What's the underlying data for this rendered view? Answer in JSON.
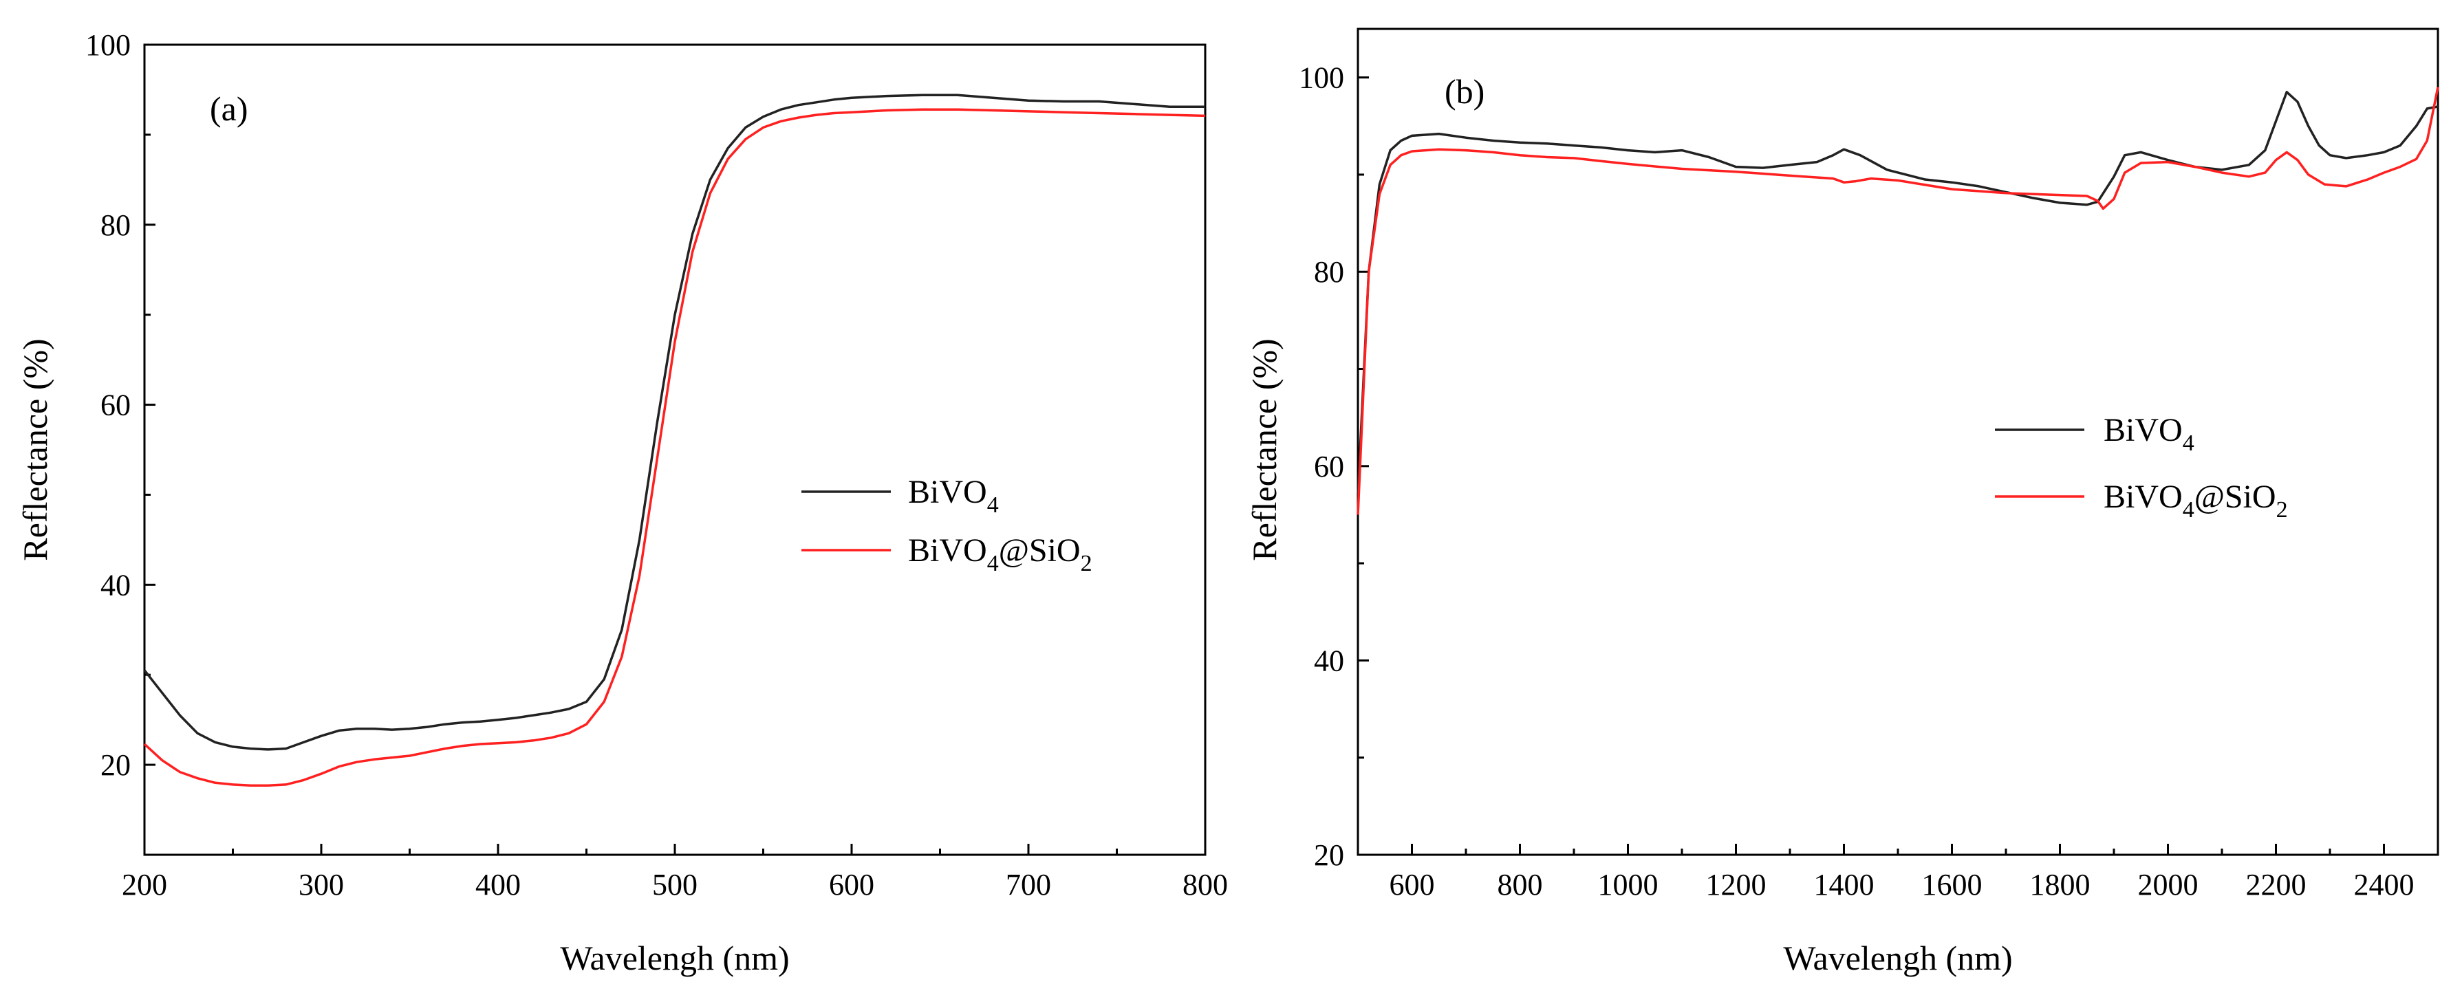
{
  "chart_data": [
    {
      "type": "line",
      "panel_label": "(a)",
      "xlabel": "Wavelengh (nm)",
      "ylabel": "Reflectance (%)",
      "xlim": [
        200,
        800
      ],
      "ylim": [
        10,
        100
      ],
      "x_ticks": [
        200,
        300,
        400,
        500,
        600,
        700,
        800
      ],
      "y_ticks": [
        20,
        40,
        60,
        80,
        100
      ],
      "legend_position": "center-right",
      "series": [
        {
          "name": "BiVO4",
          "legend_base": "BiVO",
          "legend_sub": "4",
          "color": "#222222",
          "x": [
            200,
            210,
            220,
            230,
            240,
            250,
            260,
            270,
            280,
            290,
            300,
            310,
            320,
            330,
            340,
            350,
            360,
            370,
            380,
            390,
            400,
            410,
            420,
            430,
            440,
            450,
            460,
            470,
            480,
            490,
            500,
            510,
            520,
            530,
            540,
            550,
            560,
            570,
            580,
            590,
            600,
            620,
            640,
            660,
            680,
            700,
            720,
            740,
            760,
            780,
            800
          ],
          "values": [
            30.5,
            28,
            25.5,
            23.5,
            22.5,
            22,
            21.8,
            21.7,
            21.8,
            22.5,
            23.2,
            23.8,
            24,
            24,
            23.9,
            24,
            24.2,
            24.5,
            24.7,
            24.8,
            25,
            25.2,
            25.5,
            25.8,
            26.2,
            27,
            29.5,
            35,
            45,
            58,
            70,
            79,
            85,
            88.5,
            90.8,
            92,
            92.8,
            93.3,
            93.6,
            93.9,
            94.1,
            94.3,
            94.4,
            94.4,
            94.1,
            93.8,
            93.7,
            93.7,
            93.4,
            93.1,
            93.1
          ]
        },
        {
          "name": "BiVO4@SiO2",
          "legend_base": "BiVO",
          "legend_sub": "4",
          "legend_mid": "@SiO",
          "legend_sub2": "2",
          "color": "#ff2020",
          "x": [
            200,
            210,
            220,
            230,
            240,
            250,
            260,
            270,
            280,
            290,
            300,
            310,
            320,
            330,
            340,
            350,
            360,
            370,
            380,
            390,
            400,
            410,
            420,
            430,
            440,
            450,
            460,
            470,
            480,
            490,
            500,
            510,
            520,
            530,
            540,
            550,
            560,
            570,
            580,
            590,
            600,
            620,
            640,
            660,
            680,
            700,
            720,
            740,
            760,
            780,
            800
          ],
          "values": [
            22.3,
            20.5,
            19.2,
            18.5,
            18,
            17.8,
            17.7,
            17.7,
            17.8,
            18.3,
            19,
            19.8,
            20.3,
            20.6,
            20.8,
            21,
            21.4,
            21.8,
            22.1,
            22.3,
            22.4,
            22.5,
            22.7,
            23,
            23.5,
            24.5,
            27,
            32,
            41,
            54,
            67,
            77,
            83.5,
            87.3,
            89.5,
            90.8,
            91.5,
            91.9,
            92.2,
            92.4,
            92.5,
            92.7,
            92.8,
            92.8,
            92.7,
            92.6,
            92.5,
            92.4,
            92.3,
            92.2,
            92.1
          ]
        }
      ]
    },
    {
      "type": "line",
      "panel_label": "(b)",
      "xlabel": "Wavelengh (nm)",
      "ylabel": "Reflectance (%)",
      "xlim": [
        500,
        2500
      ],
      "ylim": [
        20,
        105
      ],
      "x_ticks": [
        600,
        800,
        1000,
        1200,
        1400,
        1600,
        1800,
        2000,
        2200,
        2400
      ],
      "y_ticks": [
        20,
        40,
        60,
        80,
        100
      ],
      "legend_position": "center-right",
      "series": [
        {
          "name": "BiVO4",
          "legend_base": "BiVO",
          "legend_sub": "4",
          "color": "#222222",
          "x": [
            500,
            520,
            540,
            560,
            580,
            600,
            650,
            700,
            750,
            800,
            850,
            900,
            950,
            1000,
            1050,
            1100,
            1150,
            1200,
            1250,
            1300,
            1350,
            1380,
            1400,
            1430,
            1480,
            1550,
            1600,
            1650,
            1700,
            1750,
            1800,
            1850,
            1870,
            1900,
            1920,
            1950,
            2000,
            2050,
            2100,
            2150,
            2180,
            2200,
            2220,
            2240,
            2260,
            2280,
            2300,
            2330,
            2370,
            2400,
            2430,
            2460,
            2480,
            2500
          ],
          "values": [
            57,
            80,
            89,
            92.5,
            93.5,
            94,
            94.2,
            93.8,
            93.5,
            93.3,
            93.2,
            93,
            92.8,
            92.5,
            92.3,
            92.5,
            91.8,
            90.8,
            90.7,
            91,
            91.3,
            92,
            92.6,
            92,
            90.5,
            89.5,
            89.2,
            88.8,
            88.2,
            87.6,
            87.1,
            86.9,
            87.2,
            89.8,
            92,
            92.3,
            91.5,
            90.8,
            90.5,
            91,
            92.5,
            95.5,
            98.5,
            97.5,
            95,
            93,
            92,
            91.7,
            92,
            92.3,
            93,
            95,
            96.8,
            97
          ]
        },
        {
          "name": "BiVO4@SiO2",
          "legend_base": "BiVO",
          "legend_sub": "4",
          "legend_mid": "@SiO",
          "legend_sub2": "2",
          "color": "#ff2020",
          "x": [
            500,
            520,
            540,
            560,
            580,
            600,
            650,
            700,
            750,
            800,
            850,
            900,
            950,
            1000,
            1100,
            1200,
            1300,
            1380,
            1400,
            1420,
            1450,
            1500,
            1600,
            1700,
            1800,
            1850,
            1870,
            1880,
            1900,
            1920,
            1950,
            2000,
            2050,
            2100,
            2150,
            2180,
            2200,
            2220,
            2240,
            2260,
            2290,
            2330,
            2370,
            2400,
            2430,
            2460,
            2480,
            2500
          ],
          "values": [
            55,
            80,
            88,
            91,
            92,
            92.4,
            92.6,
            92.5,
            92.3,
            92,
            91.8,
            91.7,
            91.4,
            91.1,
            90.6,
            90.3,
            89.9,
            89.6,
            89.2,
            89.3,
            89.6,
            89.4,
            88.5,
            88.1,
            87.9,
            87.8,
            87.3,
            86.5,
            87.5,
            90.2,
            91.2,
            91.3,
            90.8,
            90.2,
            89.8,
            90.2,
            91.5,
            92.3,
            91.5,
            90,
            89,
            88.8,
            89.5,
            90.2,
            90.8,
            91.6,
            93.5,
            99
          ]
        }
      ]
    }
  ]
}
